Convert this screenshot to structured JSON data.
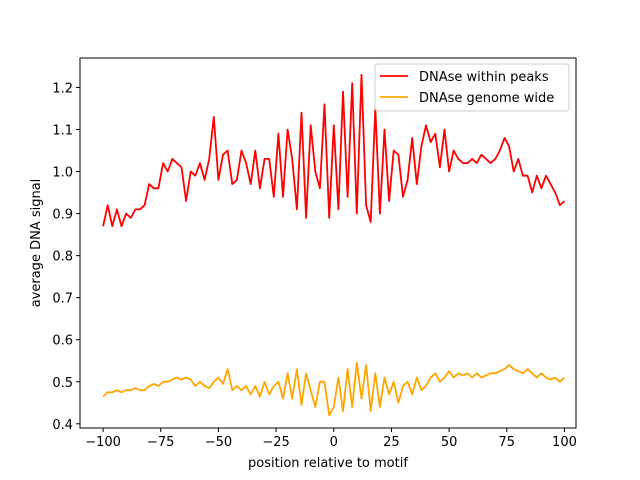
{
  "chart_data": {
    "type": "line",
    "title": "",
    "xlabel": "position relative to motif",
    "ylabel": "average DNA signal",
    "xlim": [
      -110,
      105
    ],
    "ylim": [
      0.39,
      1.27
    ],
    "xticks": [
      -100,
      -75,
      -50,
      -25,
      0,
      25,
      50,
      75,
      100
    ],
    "yticks": [
      0.4,
      0.5,
      0.6,
      0.7,
      0.8,
      0.9,
      1.0,
      1.1,
      1.2
    ],
    "xtick_labels": [
      "−100",
      "−75",
      "−50",
      "−25",
      "0",
      "25",
      "50",
      "75",
      "100"
    ],
    "ytick_labels": [
      "0.4",
      "0.5",
      "0.6",
      "0.7",
      "0.8",
      "0.9",
      "1.0",
      "1.1",
      "1.2"
    ],
    "grid": false,
    "legend_position": "top-right",
    "x_start": -100,
    "x_step": 2,
    "series": [
      {
        "name": "DNAse within peaks",
        "color": "#ff0000",
        "values": [
          0.87,
          0.92,
          0.87,
          0.91,
          0.87,
          0.9,
          0.89,
          0.91,
          0.91,
          0.92,
          0.97,
          0.96,
          0.96,
          1.02,
          1.0,
          1.03,
          1.02,
          1.01,
          0.93,
          1.0,
          0.99,
          1.02,
          0.98,
          1.03,
          1.13,
          0.98,
          1.04,
          1.05,
          0.97,
          0.98,
          1.05,
          1.02,
          0.97,
          1.05,
          0.96,
          1.03,
          1.03,
          0.94,
          1.09,
          0.94,
          1.1,
          1.03,
          0.91,
          1.14,
          0.89,
          1.11,
          1.0,
          0.96,
          1.16,
          0.89,
          1.11,
          0.91,
          1.19,
          0.94,
          1.21,
          0.9,
          1.23,
          0.92,
          0.88,
          1.15,
          0.9,
          1.1,
          0.93,
          1.05,
          1.04,
          0.94,
          0.98,
          1.08,
          0.97,
          1.06,
          1.11,
          1.07,
          1.09,
          1.01,
          1.1,
          1.0,
          1.05,
          1.03,
          1.02,
          1.02,
          1.03,
          1.02,
          1.04,
          1.03,
          1.02,
          1.03,
          1.05,
          1.08,
          1.06,
          1.0,
          1.03,
          0.99,
          0.99,
          0.95,
          0.99,
          0.96,
          0.99,
          0.97,
          0.95,
          0.92,
          0.93
        ]
      },
      {
        "name": "DNAse genome wide",
        "color": "#ffa500",
        "values": [
          0.465,
          0.475,
          0.475,
          0.48,
          0.475,
          0.48,
          0.48,
          0.485,
          0.48,
          0.48,
          0.49,
          0.495,
          0.49,
          0.5,
          0.5,
          0.505,
          0.51,
          0.505,
          0.51,
          0.505,
          0.49,
          0.5,
          0.49,
          0.485,
          0.5,
          0.51,
          0.495,
          0.53,
          0.48,
          0.49,
          0.48,
          0.49,
          0.47,
          0.49,
          0.465,
          0.5,
          0.47,
          0.49,
          0.5,
          0.46,
          0.52,
          0.46,
          0.53,
          0.445,
          0.52,
          0.48,
          0.44,
          0.5,
          0.5,
          0.42,
          0.44,
          0.51,
          0.43,
          0.53,
          0.44,
          0.545,
          0.46,
          0.54,
          0.43,
          0.52,
          0.44,
          0.51,
          0.47,
          0.5,
          0.45,
          0.49,
          0.5,
          0.47,
          0.51,
          0.48,
          0.49,
          0.51,
          0.52,
          0.5,
          0.51,
          0.525,
          0.51,
          0.52,
          0.515,
          0.52,
          0.51,
          0.52,
          0.51,
          0.515,
          0.52,
          0.52,
          0.525,
          0.53,
          0.54,
          0.53,
          0.525,
          0.52,
          0.53,
          0.52,
          0.51,
          0.52,
          0.51,
          0.505,
          0.51,
          0.5,
          0.51
        ]
      }
    ]
  }
}
